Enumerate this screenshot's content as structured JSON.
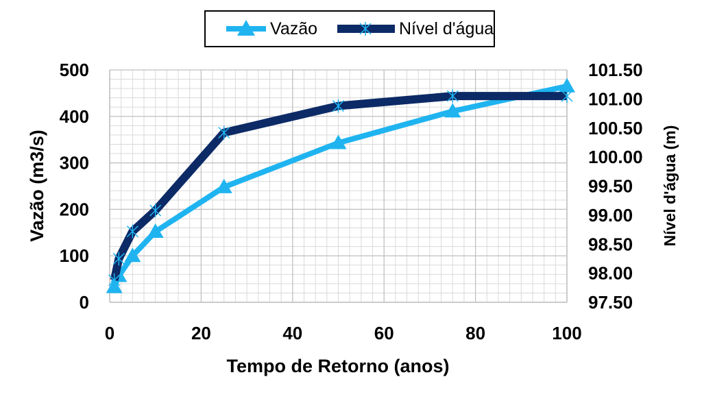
{
  "chart_data": {
    "type": "line",
    "xlabel": "Tempo de Retorno (anos)",
    "ylabel": "Vazão (m3/s)",
    "y2label": "Nível d'água (m)",
    "xlim": [
      0,
      100
    ],
    "ylim": [
      0,
      500
    ],
    "y2lim": [
      97.5,
      101.5
    ],
    "xticks": [
      "0",
      "20",
      "40",
      "60",
      "80",
      "100"
    ],
    "yticks": [
      "0",
      "100",
      "200",
      "300",
      "400",
      "500"
    ],
    "y2ticks": [
      "97.50",
      "98.00",
      "98.50",
      "99.00",
      "99.50",
      "100.00",
      "100.50",
      "101.00",
      "101.50"
    ],
    "grid": true,
    "legend_position": "top",
    "series": [
      {
        "name": "Vazão",
        "axis": "left",
        "color": "#1fb4f0",
        "marker": "triangle",
        "x": [
          1,
          2,
          5,
          10,
          25,
          50,
          75,
          100
        ],
        "values": [
          33,
          57,
          100,
          152,
          248,
          343,
          411,
          465
        ]
      },
      {
        "name": "Nível d'água",
        "axis": "right",
        "color": "#0c2a66",
        "marker": "star",
        "x": [
          1,
          2,
          5,
          10,
          25,
          50,
          75,
          100
        ],
        "values": [
          97.88,
          98.25,
          98.72,
          99.08,
          100.42,
          100.88,
          101.05,
          101.05
        ]
      }
    ]
  }
}
